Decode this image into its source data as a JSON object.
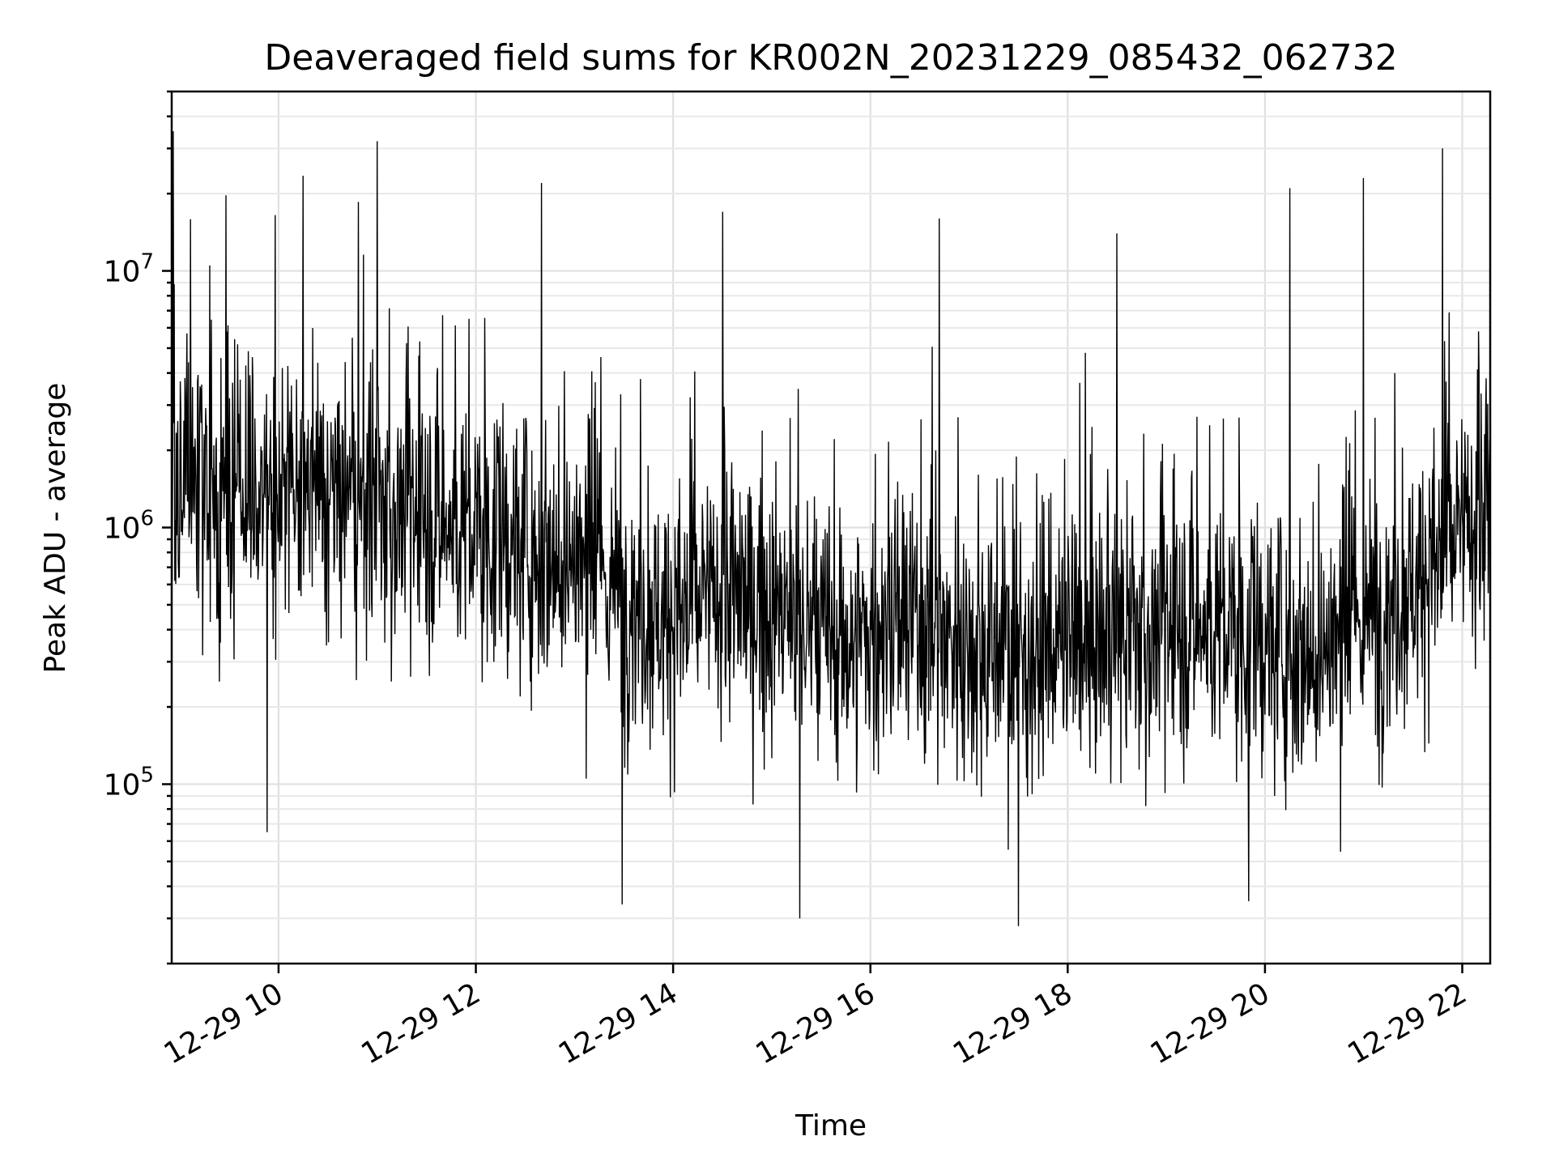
{
  "chart_data": {
    "type": "line",
    "title": "Deaveraged field sums for KR002N_20231229_085432_062732",
    "xlabel": "Time",
    "ylabel": "Peak ADU - average",
    "yscale": "log",
    "xlim": [
      "2023-12-29 08:55",
      "2023-12-29 22:17"
    ],
    "ylim": [
      20000,
      50000000
    ],
    "grid": true,
    "x_ticks": [
      {
        "label": "12-29 10",
        "value": "2023-12-29 10:00"
      },
      {
        "label": "12-29 12",
        "value": "2023-12-29 12:00"
      },
      {
        "label": "12-29 14",
        "value": "2023-12-29 14:00"
      },
      {
        "label": "12-29 16",
        "value": "2023-12-29 16:00"
      },
      {
        "label": "12-29 18",
        "value": "2023-12-29 18:00"
      },
      {
        "label": "12-29 20",
        "value": "2023-12-29 20:00"
      },
      {
        "label": "12-29 22",
        "value": "2023-12-29 22:00"
      }
    ],
    "y_ticks": [
      {
        "base": "10",
        "exp": "5",
        "value": 100000
      },
      {
        "base": "10",
        "exp": "6",
        "value": 1000000
      },
      {
        "base": "10",
        "exp": "7",
        "value": 10000000
      }
    ],
    "series": [
      {
        "color": "#000000",
        "x": [
          "2023-12-29 08:55",
          "2023-12-29 09:05",
          "2023-12-29 09:15",
          "2023-12-29 09:30",
          "2023-12-29 09:45",
          "2023-12-29 10:00",
          "2023-12-29 10:15",
          "2023-12-29 10:30",
          "2023-12-29 10:45",
          "2023-12-29 11:00",
          "2023-12-29 11:15",
          "2023-12-29 11:30",
          "2023-12-29 11:45",
          "2023-12-29 12:00",
          "2023-12-29 12:15",
          "2023-12-29 12:30",
          "2023-12-29 12:45",
          "2023-12-29 13:00",
          "2023-12-29 13:15",
          "2023-12-29 13:30",
          "2023-12-29 13:45",
          "2023-12-29 14:00",
          "2023-12-29 14:15",
          "2023-12-29 14:30",
          "2023-12-29 14:45",
          "2023-12-29 15:00",
          "2023-12-29 15:15",
          "2023-12-29 15:30",
          "2023-12-29 15:45",
          "2023-12-29 16:00",
          "2023-12-29 16:15",
          "2023-12-29 16:30",
          "2023-12-29 16:45",
          "2023-12-29 17:00",
          "2023-12-29 17:15",
          "2023-12-29 17:30",
          "2023-12-29 17:45",
          "2023-12-29 18:00",
          "2023-12-29 18:15",
          "2023-12-29 18:30",
          "2023-12-29 18:45",
          "2023-12-29 19:00",
          "2023-12-29 19:15",
          "2023-12-29 19:30",
          "2023-12-29 19:45",
          "2023-12-29 20:00",
          "2023-12-29 20:15",
          "2023-12-29 20:30",
          "2023-12-29 20:45",
          "2023-12-29 21:00",
          "2023-12-29 21:15",
          "2023-12-29 21:30",
          "2023-12-29 21:45",
          "2023-12-29 22:00",
          "2023-12-29 22:15"
        ],
        "values": [
          1300000,
          1500000,
          1400000,
          1300000,
          1400000,
          1300000,
          1350000,
          1300000,
          1250000,
          1200000,
          1150000,
          1100000,
          1000000,
          950000,
          900000,
          850000,
          800000,
          750000,
          650000,
          550000,
          480000,
          450000,
          500000,
          550000,
          520000,
          480000,
          420000,
          380000,
          350000,
          380000,
          420000,
          400000,
          380000,
          360000,
          340000,
          330000,
          340000,
          350000,
          360000,
          370000,
          380000,
          400000,
          420000,
          400000,
          380000,
          360000,
          340000,
          330000,
          360000,
          420000,
          500000,
          620000,
          750000,
          950000,
          1150000
        ],
        "peaks": [
          {
            "x": "2023-12-29 08:56",
            "y": 35000000
          },
          {
            "x": "2023-12-29 09:18",
            "y": 10500000
          },
          {
            "x": "2023-12-29 09:58",
            "y": 16500000
          },
          {
            "x": "2023-12-29 11:00",
            "y": 32000000
          },
          {
            "x": "2023-12-29 12:40",
            "y": 22000000
          },
          {
            "x": "2023-12-29 14:30",
            "y": 17000000
          },
          {
            "x": "2023-12-29 16:42",
            "y": 16000000
          },
          {
            "x": "2023-12-29 18:30",
            "y": 14000000
          },
          {
            "x": "2023-12-29 20:15",
            "y": 21000000
          },
          {
            "x": "2023-12-29 21:00",
            "y": 23000000
          },
          {
            "x": "2023-12-29 21:48",
            "y": 30000000
          }
        ],
        "troughs": [
          {
            "x": "2023-12-29 09:53",
            "y": 65000.0
          },
          {
            "x": "2023-12-29 13:29",
            "y": 34000
          },
          {
            "x": "2023-12-29 15:17",
            "y": 30000
          },
          {
            "x": "2023-12-29 17:30",
            "y": 28000
          },
          {
            "x": "2023-12-29 19:50",
            "y": 35000
          }
        ]
      }
    ]
  }
}
